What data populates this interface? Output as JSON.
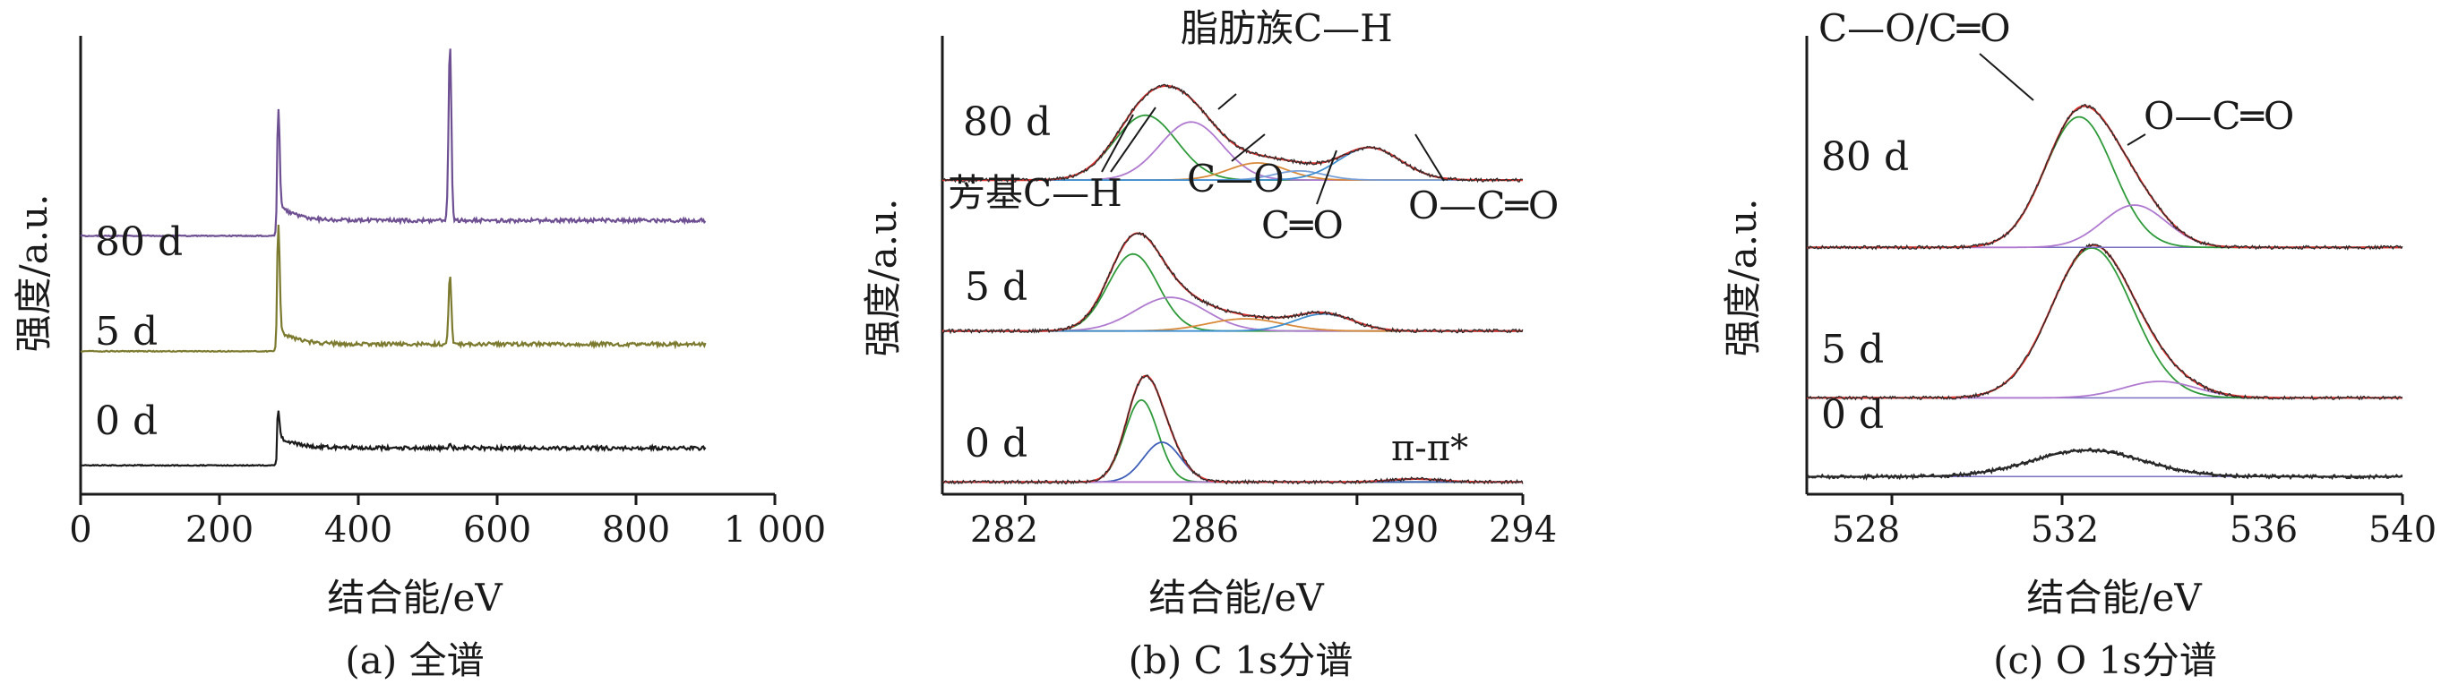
{
  "chart_data": [
    {
      "type": "line",
      "caption": "(a) 全谱",
      "ylabel": "强度/a.u.",
      "xlabel": "结合能/eV",
      "xlim": [
        0,
        1000
      ],
      "x_ticks": [
        "0",
        "200",
        "400",
        "600",
        "800",
        "1 000"
      ],
      "series": [
        {
          "name": "0 d",
          "color": "#1a1a1a",
          "baseline": 0.0,
          "onset": 283,
          "step": 0.27,
          "tail": 0.2,
          "peaks": [
            {
              "x": 285,
              "h": 0.38,
              "w": 1.8
            },
            {
              "x": 532,
              "h": 0.05,
              "w": 2.5
            }
          ]
        },
        {
          "name": "5 d",
          "color": "#7c7a2e",
          "baseline": 1.78,
          "onset": 283,
          "step": 0.11,
          "tail": 0.25,
          "peaks": [
            {
              "x": 285,
              "h": 1.63,
              "w": 1.8
            },
            {
              "x": 532,
              "h": 1.08,
              "w": 2.0
            }
          ]
        },
        {
          "name": "80 d",
          "color": "#6d4f92",
          "baseline": 3.58,
          "onset": 283,
          "step": 0.24,
          "tail": 0.25,
          "peaks": [
            {
              "x": 285,
              "h": 1.52,
              "w": 1.8
            },
            {
              "x": 532,
              "h": 2.74,
              "w": 2.0
            }
          ]
        }
      ],
      "ylim": [
        -0.45,
        6.7
      ]
    },
    {
      "type": "line",
      "caption": "(b) C 1s分谱",
      "ylabel": "强度/a.u.",
      "xlabel": "结合能/eV",
      "xlim": [
        280,
        294
      ],
      "x_ticks": [
        "282",
        "286",
        "290",
        "294"
      ],
      "x_tick_values": [
        282,
        286,
        290,
        294
      ],
      "series": [
        {
          "name": "0 d",
          "baseline": 0.0,
          "components": [
            {
              "x": 284.8,
              "h": 1.34,
              "w": 0.4,
              "color": "#2f9a3a"
            },
            {
              "x": 285.3,
              "h": 0.65,
              "w": 0.45,
              "color": "#3f5fb8"
            },
            {
              "x": 291.4,
              "h": 0.05,
              "w": 0.6,
              "color": "#b07ad0"
            }
          ]
        },
        {
          "name": "5 d",
          "baseline": 2.47,
          "components": [
            {
              "x": 284.6,
              "h": 1.26,
              "w": 0.6,
              "color": "#2f9a3a"
            },
            {
              "x": 285.5,
              "h": 0.55,
              "w": 0.85,
              "color": "#b07ad0"
            },
            {
              "x": 287.3,
              "h": 0.2,
              "w": 0.9,
              "color": "#d88a3a"
            },
            {
              "x": 289.2,
              "h": 0.28,
              "w": 0.7,
              "color": "#3f8fd0"
            }
          ]
        },
        {
          "name": "80 d",
          "baseline": 4.94,
          "components": [
            {
              "x": 284.9,
              "h": 1.06,
              "w": 0.75,
              "color": "#2f9a3a"
            },
            {
              "x": 286.0,
              "h": 0.95,
              "w": 0.75,
              "color": "#b07ad0"
            },
            {
              "x": 287.6,
              "h": 0.28,
              "w": 0.7,
              "color": "#d88a3a"
            },
            {
              "x": 288.6,
              "h": 0.15,
              "w": 0.6,
              "color": "#7aa0d8"
            },
            {
              "x": 290.3,
              "h": 0.53,
              "w": 0.75,
              "color": "#3f8fd0"
            }
          ]
        }
      ],
      "ylim": [
        -0.2,
        7.3
      ],
      "annotations": [
        "脂肪族C—H",
        "芳基C—H",
        "C—O",
        "C═O",
        "O—C═O",
        "π-π*"
      ]
    },
    {
      "type": "line",
      "caption": "(c) O 1s分谱",
      "ylabel": "强度/a.u.",
      "xlabel": "结合能/eV",
      "xlim": [
        526,
        540
      ],
      "x_ticks": [
        "528",
        "532",
        "536",
        "540"
      ],
      "x_tick_values": [
        528,
        532,
        536,
        540
      ],
      "series": [
        {
          "name": "0 d",
          "baseline": 0.0,
          "components": [
            {
              "x": 532.6,
              "h": 0.45,
              "w": 1.3,
              "color": "#1a1a1a"
            }
          ]
        },
        {
          "name": "5 d",
          "baseline": 1.34,
          "components": [
            {
              "x": 532.7,
              "h": 2.55,
              "w": 0.95,
              "color": "#2f9a3a"
            },
            {
              "x": 534.3,
              "h": 0.28,
              "w": 0.85,
              "color": "#b07ad0"
            }
          ]
        },
        {
          "name": "80 d",
          "baseline": 3.9,
          "components": [
            {
              "x": 532.4,
              "h": 2.22,
              "w": 0.8,
              "color": "#2f9a3a"
            },
            {
              "x": 533.7,
              "h": 0.72,
              "w": 0.75,
              "color": "#b07ad0"
            }
          ]
        }
      ],
      "ylim": [
        -0.3,
        7.5
      ],
      "annotations": [
        "C—O/C═O",
        "O—C═O"
      ]
    }
  ]
}
